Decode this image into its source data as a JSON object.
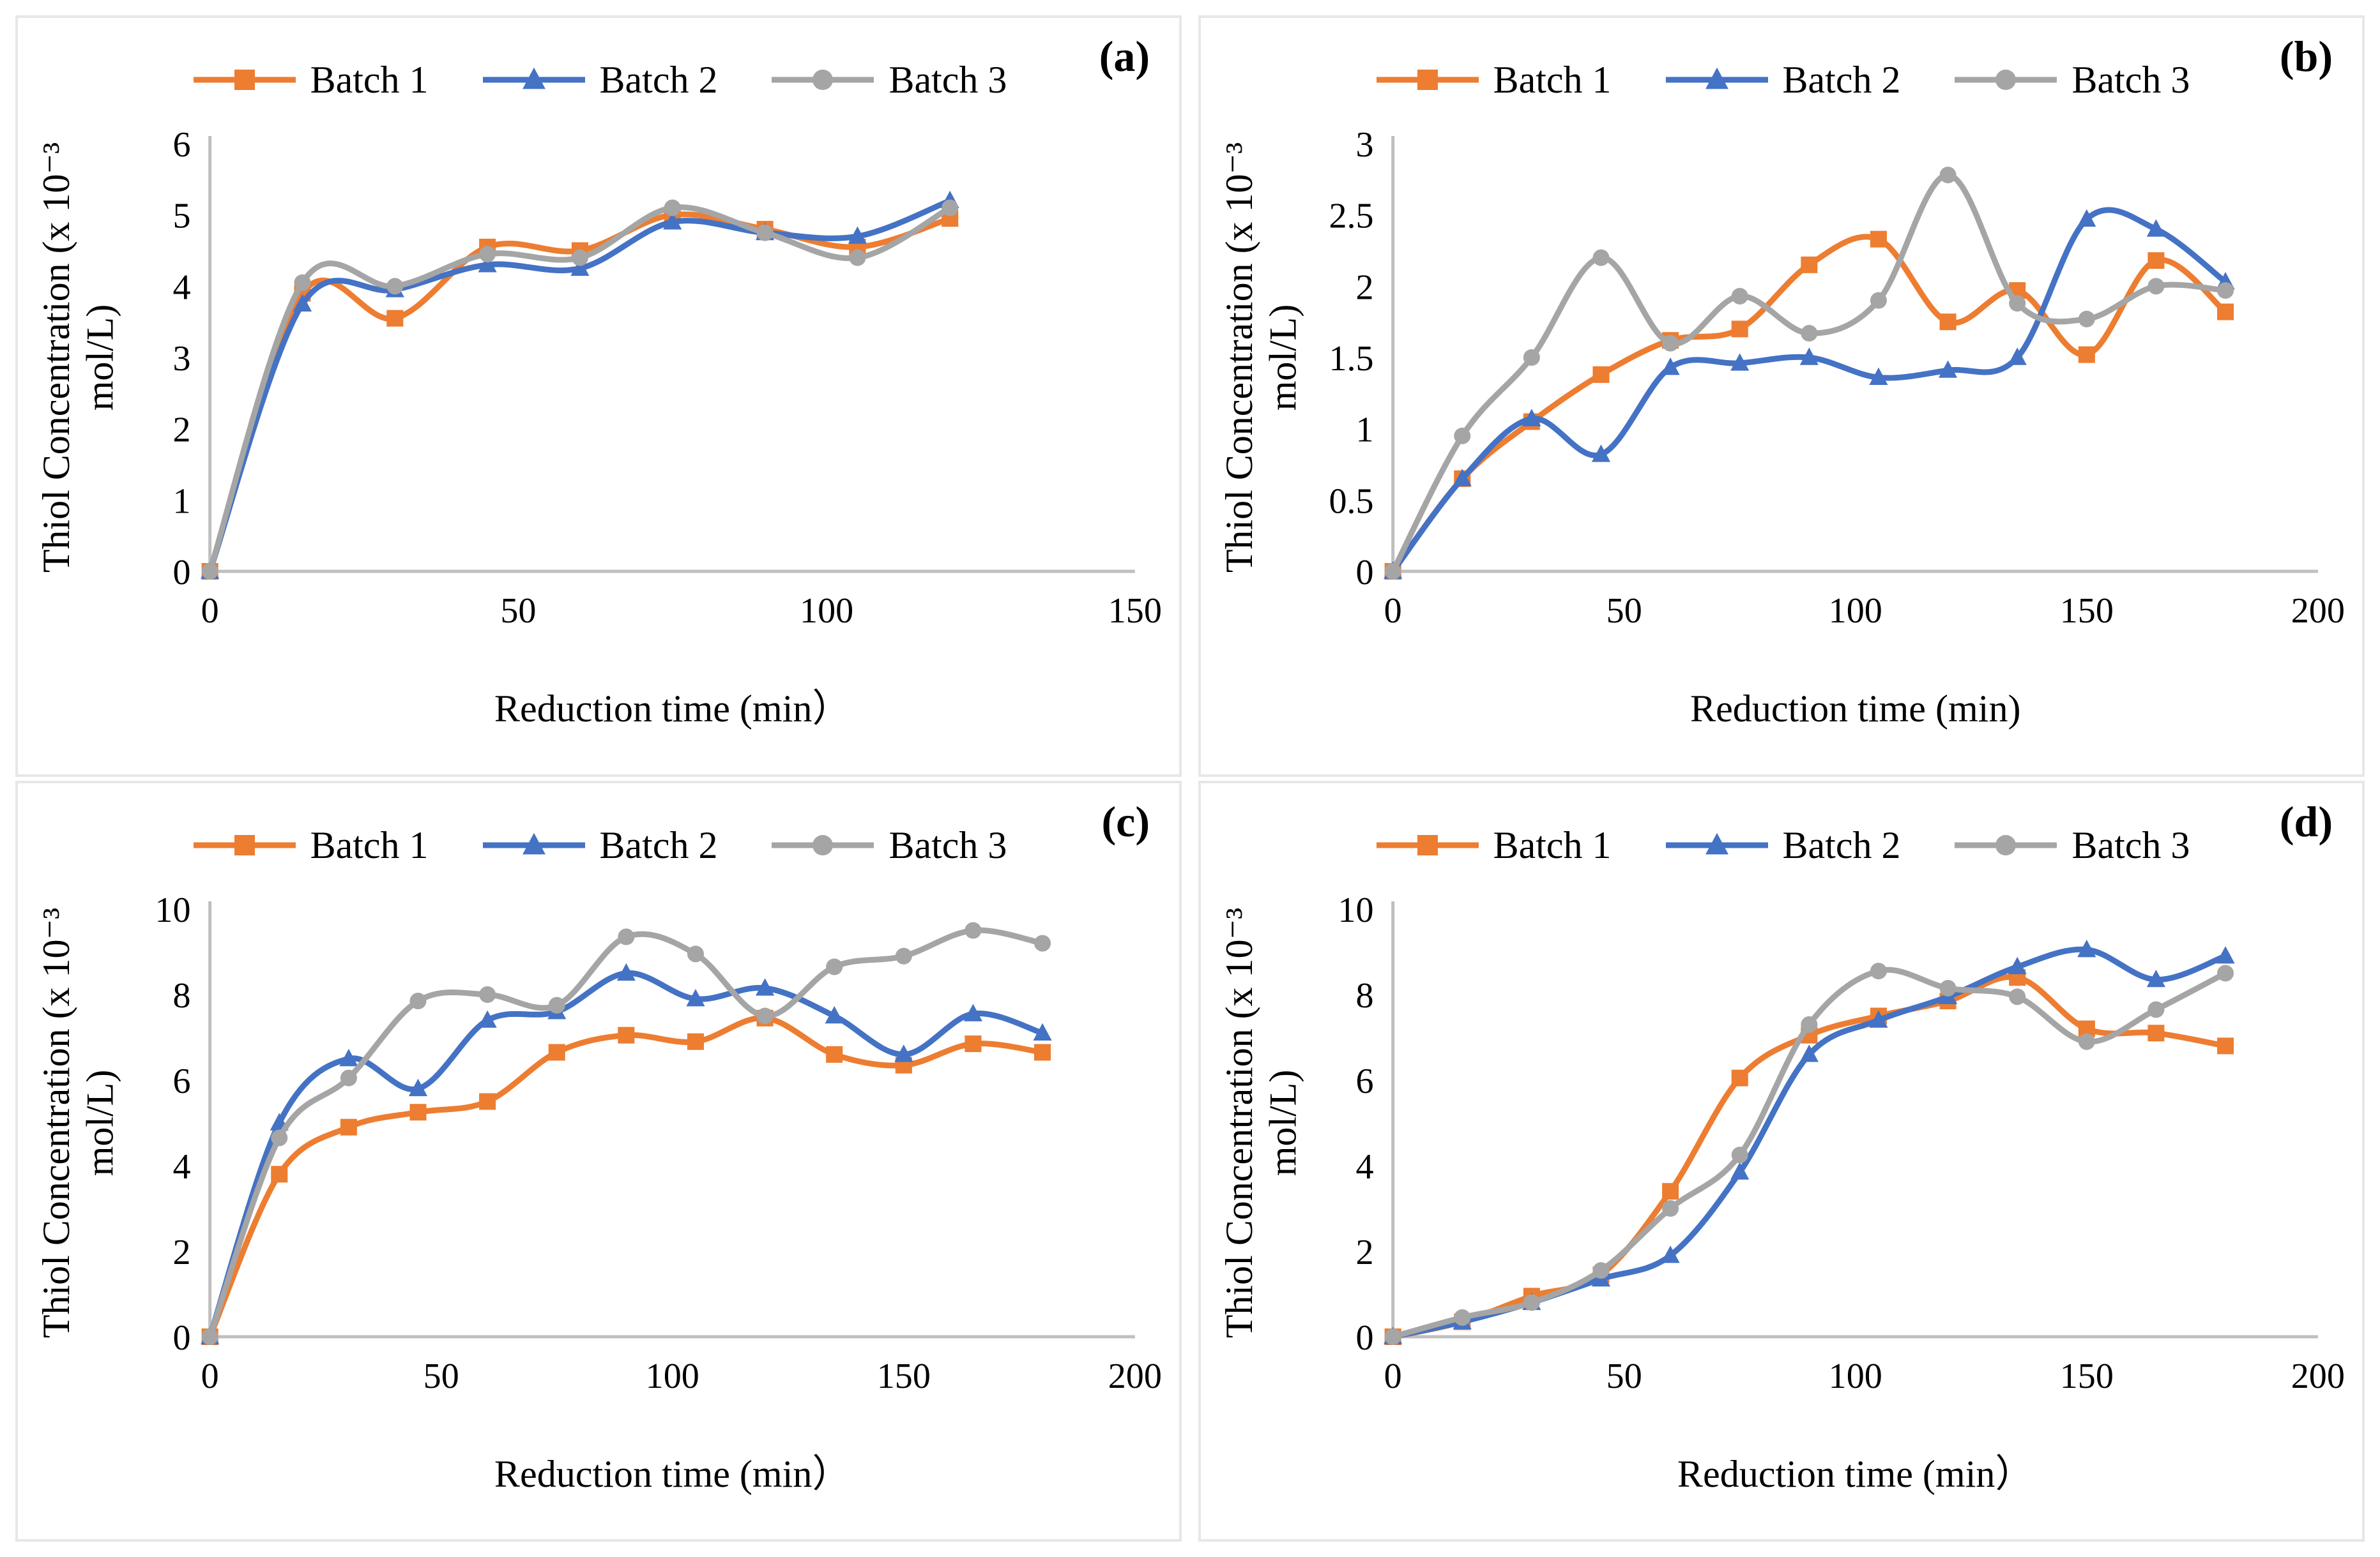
{
  "figure": {
    "background": "#FFFFFF",
    "panel_border_color": "#E7E7E7",
    "axis_color": "#BFBFBF",
    "text_color": "#000000"
  },
  "chart_data": [
    {
      "type": "line",
      "panel_label": "(a)",
      "xlabel": "Reduction time (min）",
      "ylabel": "Thiol Concentration (x 10⁻³ mol/L)",
      "ylabel_lines": [
        "Thiol Concentration (x 10⁻³",
        "mol/L)"
      ],
      "legend_position": "top",
      "grid": false,
      "xlim": [
        0,
        150
      ],
      "ylim": [
        0,
        6
      ],
      "xticks": [
        0,
        50,
        100,
        150
      ],
      "xtick_labels": [
        "0",
        "50",
        "100",
        "150"
      ],
      "yticks": [
        0,
        1,
        2,
        3,
        4,
        5,
        6
      ],
      "ytick_labels": [
        "0",
        "1",
        "2",
        "3",
        "4",
        "5",
        "6"
      ],
      "x": [
        0,
        15,
        30,
        45,
        60,
        75,
        90,
        105,
        120
      ],
      "series": [
        {
          "name": "Batch 1",
          "color": "#ED7D31",
          "marker": "square",
          "values": [
            0,
            3.9,
            3.55,
            4.55,
            4.5,
            5.0,
            4.8,
            4.55,
            4.95
          ]
        },
        {
          "name": "Batch 2",
          "color": "#4472C4",
          "marker": "triangle",
          "values": [
            0,
            3.75,
            3.95,
            4.3,
            4.25,
            4.9,
            4.75,
            4.7,
            5.2
          ]
        },
        {
          "name": "Batch 3",
          "color": "#A5A5A5",
          "marker": "circle",
          "values": [
            0,
            4.05,
            4.0,
            4.45,
            4.4,
            5.1,
            4.75,
            4.4,
            5.1
          ]
        }
      ]
    },
    {
      "type": "line",
      "panel_label": "(b)",
      "xlabel": "Reduction time (min)",
      "ylabel": "Thiol Concentration (x 10⁻³ mol/L)",
      "ylabel_lines": [
        "Thiol Concentration (x 10⁻³",
        "mol/L)"
      ],
      "legend_position": "top",
      "grid": false,
      "xlim": [
        0,
        200
      ],
      "ylim": [
        0,
        3
      ],
      "xticks": [
        0,
        50,
        100,
        150,
        200
      ],
      "xtick_labels": [
        "0",
        "50",
        "100",
        "150",
        "200"
      ],
      "yticks": [
        0,
        0.5,
        1,
        1.5,
        2,
        2.5,
        3
      ],
      "ytick_labels": [
        "0",
        "0.5",
        "1",
        "1.5",
        "2",
        "2.5",
        "3"
      ],
      "x": [
        0,
        15,
        30,
        45,
        60,
        75,
        90,
        105,
        120,
        135,
        150,
        165,
        180
      ],
      "series": [
        {
          "name": "Batch 1",
          "color": "#ED7D31",
          "marker": "square",
          "values": [
            0,
            0.65,
            1.05,
            1.38,
            1.62,
            1.7,
            2.15,
            2.33,
            1.75,
            1.97,
            1.52,
            2.18,
            1.82
          ]
        },
        {
          "name": "Batch 2",
          "color": "#4472C4",
          "marker": "triangle",
          "values": [
            0,
            0.65,
            1.07,
            0.82,
            1.43,
            1.46,
            1.5,
            1.36,
            1.41,
            1.5,
            2.47,
            2.4,
            2.03
          ]
        },
        {
          "name": "Batch 3",
          "color": "#A5A5A5",
          "marker": "circle",
          "values": [
            0,
            0.95,
            1.5,
            2.2,
            1.6,
            1.93,
            1.67,
            1.9,
            2.78,
            1.88,
            1.77,
            2.0,
            1.97
          ]
        }
      ]
    },
    {
      "type": "line",
      "panel_label": "(c)",
      "xlabel": "Reduction time (min）",
      "ylabel": "Thiol Concentration (x 10⁻³ mol/L)",
      "ylabel_lines": [
        "Thiol Concentration (x 10⁻³",
        "mol/L)"
      ],
      "legend_position": "top",
      "grid": false,
      "xlim": [
        0,
        200
      ],
      "ylim": [
        0,
        10
      ],
      "xticks": [
        0,
        50,
        100,
        150,
        200
      ],
      "xtick_labels": [
        "0",
        "50",
        "100",
        "150",
        "200"
      ],
      "yticks": [
        0,
        2,
        4,
        6,
        8,
        10
      ],
      "ytick_labels": [
        "0",
        "2",
        "4",
        "6",
        "8",
        "10"
      ],
      "x": [
        0,
        15,
        30,
        45,
        60,
        75,
        90,
        105,
        120,
        135,
        150,
        165,
        180
      ],
      "series": [
        {
          "name": "Batch 1",
          "color": "#ED7D31",
          "marker": "square",
          "values": [
            0,
            3.8,
            4.9,
            5.25,
            5.5,
            6.65,
            7.05,
            6.9,
            7.45,
            6.6,
            6.35,
            6.85,
            6.65
          ]
        },
        {
          "name": "Batch 2",
          "color": "#4472C4",
          "marker": "triangle",
          "values": [
            0,
            5.0,
            6.5,
            5.8,
            7.4,
            7.6,
            8.5,
            7.9,
            8.15,
            7.5,
            6.6,
            7.55,
            7.1
          ]
        },
        {
          "name": "Batch 3",
          "color": "#A5A5A5",
          "marker": "circle",
          "values": [
            0,
            4.65,
            6.05,
            7.85,
            8.0,
            7.75,
            9.35,
            8.95,
            7.5,
            8.65,
            8.9,
            9.5,
            9.2
          ]
        }
      ]
    },
    {
      "type": "line",
      "panel_label": "(d)",
      "xlabel": "Reduction time (min）",
      "ylabel": "Thiol Concentration (x 10⁻³ mol/L)",
      "ylabel_lines": [
        "Thiol Concentration (x 10⁻³",
        "mol/L)"
      ],
      "legend_position": "top",
      "grid": false,
      "xlim": [
        0,
        200
      ],
      "ylim": [
        0,
        10
      ],
      "xticks": [
        0,
        50,
        100,
        150,
        200
      ],
      "xtick_labels": [
        "0",
        "50",
        "100",
        "150",
        "200"
      ],
      "yticks": [
        0,
        2,
        4,
        6,
        8,
        10
      ],
      "ytick_labels": [
        "0",
        "2",
        "4",
        "6",
        "8",
        "10"
      ],
      "x": [
        0,
        15,
        30,
        45,
        60,
        75,
        90,
        105,
        120,
        135,
        150,
        165,
        180
      ],
      "series": [
        {
          "name": "Batch 1",
          "color": "#ED7D31",
          "marker": "square",
          "values": [
            0,
            0.35,
            0.95,
            1.45,
            3.4,
            6.05,
            7.05,
            7.5,
            7.85,
            8.4,
            7.2,
            7.1,
            6.8
          ]
        },
        {
          "name": "Batch 2",
          "color": "#4472C4",
          "marker": "triangle",
          "values": [
            0,
            0.35,
            0.8,
            1.35,
            1.9,
            3.85,
            6.6,
            7.4,
            7.95,
            8.65,
            9.05,
            8.35,
            8.9
          ]
        },
        {
          "name": "Batch 3",
          "color": "#A5A5A5",
          "marker": "circle",
          "values": [
            0,
            0.45,
            0.8,
            1.55,
            3.0,
            4.25,
            7.3,
            8.55,
            8.15,
            7.95,
            6.9,
            7.65,
            8.5
          ]
        }
      ]
    }
  ]
}
